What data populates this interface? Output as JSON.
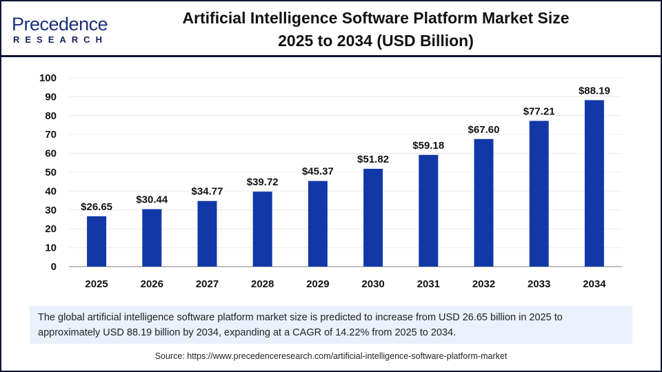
{
  "logo": {
    "main": "Precedence",
    "sub": "RESEARCH"
  },
  "title_line1": "Artificial Intelligence Software Platform Market Size",
  "title_line2": "2025 to 2034 (USD Billion)",
  "chart_data": {
    "type": "bar",
    "title": "Artificial Intelligence Software Platform Market Size 2025 to 2034 (USD Billion)",
    "categories": [
      "2025",
      "2026",
      "2027",
      "2028",
      "2029",
      "2030",
      "2031",
      "2032",
      "2033",
      "2034"
    ],
    "values": [
      26.65,
      30.44,
      34.77,
      39.72,
      45.37,
      51.82,
      59.18,
      67.6,
      77.21,
      88.19
    ],
    "data_labels": [
      "$26.65",
      "$30.44",
      "$34.77",
      "$39.72",
      "$45.37",
      "$51.82",
      "$59.18",
      "$67.60",
      "$77.21",
      "$88.19"
    ],
    "yticks": [
      "0",
      "10",
      "20",
      "30",
      "40",
      "50",
      "60",
      "70",
      "80",
      "90",
      "100"
    ],
    "ylim": [
      0,
      100
    ],
    "xlabel": "",
    "ylabel": "",
    "grid": true,
    "bar_color": "#1238a8"
  },
  "note": "The global artificial intelligence software platform market  size is predicted to increase from USD 26.65 billion in 2025 to approximately USD 88.19 billion by 2034, expanding at a CAGR of 14.22% from 2025 to 2034.",
  "source": "Source: https://www.precedenceresearch.com/artificial-intelligence-software-platform-market"
}
